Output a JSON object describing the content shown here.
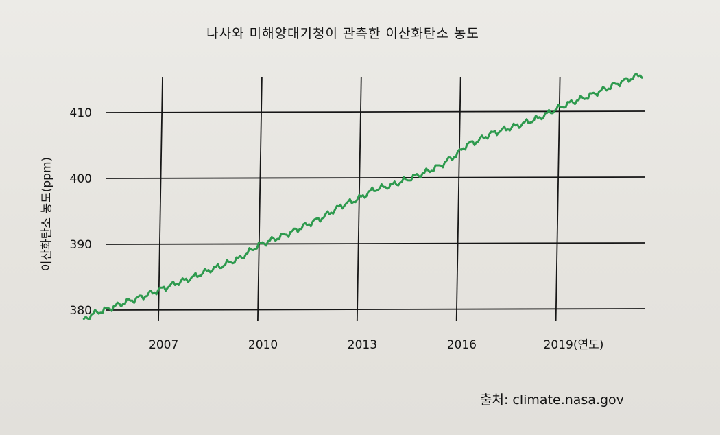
{
  "page": {
    "title": "나사와 미해양대기청이 관측한 이산화탄소 농도",
    "source": "출처: climate.nasa.gov"
  },
  "chart_data": {
    "type": "line",
    "title": "나사와 미해양대기청이 관측한 이산화탄소 농도",
    "xlabel": "(연도)",
    "ylabel": "이산화탄소 농도(ppm)",
    "x_ticks": [
      2007,
      2010,
      2013,
      2016,
      2019
    ],
    "x_tick_labels": [
      "2007",
      "2010",
      "2013",
      "2016",
      "2019(연도)"
    ],
    "y_ticks": [
      380,
      390,
      400,
      410
    ],
    "y_tick_labels": [
      "380",
      "390",
      "400",
      "410"
    ],
    "xlim": [
      2004.5,
      2021.8
    ],
    "ylim": [
      378,
      416
    ],
    "grid": true,
    "line_color": "#2e9a4e",
    "series": [
      {
        "x": [
          2004.75,
          2005.0,
          2005.5,
          2006.0,
          2006.5,
          2007.0,
          2007.5,
          2008.0,
          2008.5,
          2009.0,
          2009.5,
          2010.0,
          2010.5,
          2011.0,
          2011.5,
          2012.0,
          2012.5,
          2013.0,
          2013.5,
          2014.0,
          2014.5,
          2015.0,
          2015.5,
          2016.0,
          2016.3,
          2016.6,
          2017.0,
          2017.5,
          2018.0,
          2018.5,
          2019.0,
          2019.5,
          2020.0,
          2020.5,
          2021.0,
          2021.6
        ],
        "values": [
          378.5,
          379.4,
          380.2,
          381.2,
          382.0,
          383.0,
          384.0,
          384.9,
          386.0,
          386.9,
          388.0,
          389.8,
          390.8,
          391.8,
          393.0,
          394.2,
          395.8,
          396.8,
          398.3,
          398.9,
          399.8,
          400.8,
          401.9,
          403.6,
          405.1,
          405.6,
          406.7,
          407.5,
          408.3,
          409.2,
          410.5,
          411.6,
          412.5,
          413.6,
          414.7,
          415.8
        ]
      }
    ]
  }
}
